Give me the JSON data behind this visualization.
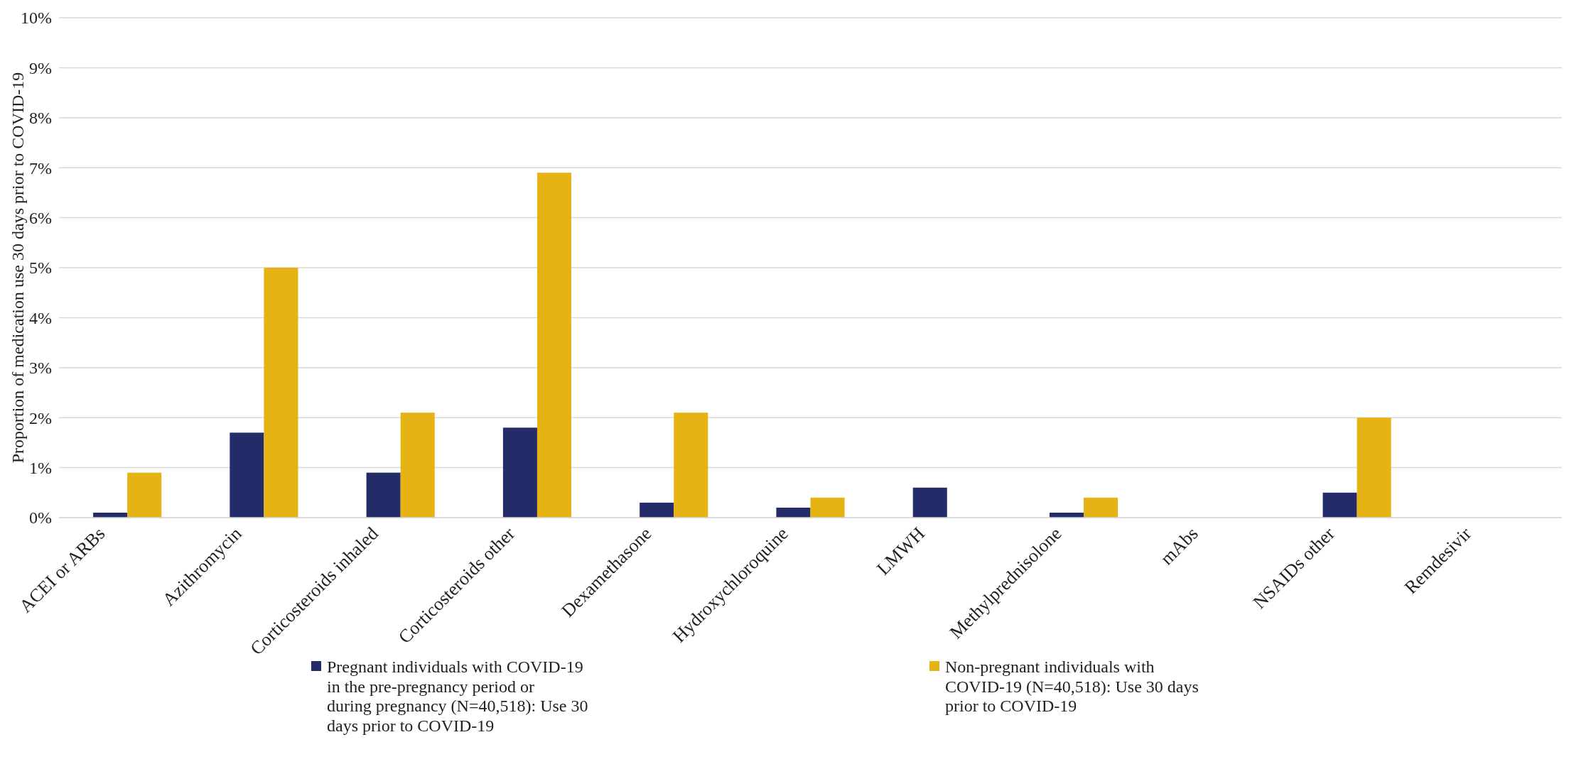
{
  "chart_data": {
    "type": "bar",
    "ylabel": "Proportion of medication use 30 days prior to COVID-19",
    "categories": [
      "ACEI or ARBs",
      "Azithromycin",
      "Corticosteroids inhaled",
      "Corticosteroids other",
      "Dexamethasone",
      "Hydroxychloroquine",
      "LMWH",
      "Methylprednisolone",
      "mAbs",
      "NSAIDs other",
      "Remdesivir"
    ],
    "series": [
      {
        "name": "Pregnant individuals with COVID-19 in the pre-pregnancy period or during pregnancy (N=40,518): Use 30 days prior to COVID-19",
        "color": "#232c68",
        "values": [
          0.1,
          1.7,
          0.9,
          1.8,
          0.3,
          0.2,
          0.6,
          0.1,
          0,
          0.5,
          0
        ]
      },
      {
        "name": "Non-pregnant individuals with COVID-19 (N=40,518): Use 30 days prior to COVID-19",
        "color": "#e5b414",
        "values": [
          0.9,
          5.0,
          2.1,
          6.9,
          2.1,
          0.4,
          0,
          0.4,
          0,
          2.0,
          0
        ]
      }
    ],
    "ylim": [
      0,
      10
    ],
    "yticks": [
      {
        "value": 0,
        "label": "0%"
      },
      {
        "value": 1,
        "label": "1%"
      },
      {
        "value": 2,
        "label": "2%"
      },
      {
        "value": 3,
        "label": "3%"
      },
      {
        "value": 4,
        "label": "4%"
      },
      {
        "value": 5,
        "label": "5%"
      },
      {
        "value": 6,
        "label": "6%"
      },
      {
        "value": 7,
        "label": "7%"
      },
      {
        "value": 8,
        "label": "8%"
      },
      {
        "value": 9,
        "label": "9%"
      },
      {
        "value": 10,
        "label": "10%"
      }
    ],
    "grid": "y",
    "legend": "bottom"
  }
}
